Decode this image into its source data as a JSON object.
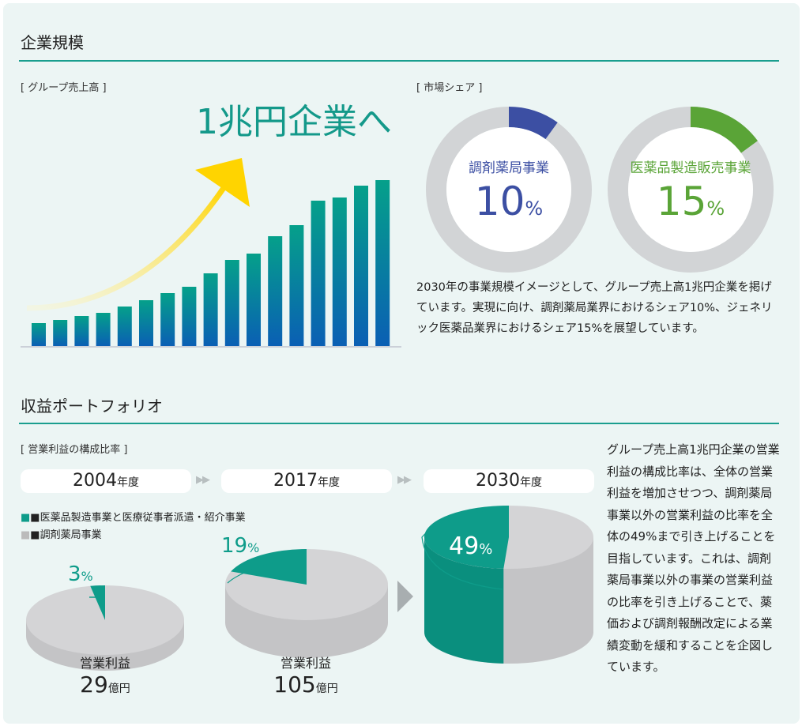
{
  "section1": {
    "title": "企業規模",
    "sales_label": "[ グループ売上高 ]",
    "headline": "1兆円企業へ",
    "share_label": "[ 市場シェア ]",
    "paragraph": "2030年の事業規模イメージとして、グループ売上高1兆円企業を掲げています。実現に向け、調剤薬局業界におけるシェア10%、ジェネリック医薬品業界におけるシェア15%を展望しています。"
  },
  "section2": {
    "title": "収益ポートフォリオ",
    "ratio_label": "[ 営業利益の構成比率 ]",
    "years": [
      {
        "year": "2004",
        "unit": "年度"
      },
      {
        "year": "2017",
        "unit": "年度"
      },
      {
        "year": "2030",
        "unit": "年度"
      }
    ],
    "legend": [
      "■医薬品製造事業と医療従事者派遣・紹介事業",
      "■調剤薬局事業"
    ],
    "profit_label": "営業利益",
    "profits": [
      {
        "value": "29",
        "unit": "億円"
      },
      {
        "value": "105",
        "unit": "億円"
      }
    ],
    "paragraph": "グループ売上高1兆円企業の営業利益の構成比率は、全体の営業利益を増加させつつ、調剤薬局事業以外の営業利益の比率を全体の49%まで引き上げることを目指しています。これは、調剤薬局事業以外の事業の営業利益の比率を引き上げることで、薬価および調剤報酬改定による業績変動を緩和することを企図しています。"
  },
  "chart_data": [
    {
      "type": "bar",
      "title": "",
      "values": [
        29,
        33,
        38,
        42,
        50,
        58,
        67,
        75,
        92,
        109,
        117,
        139,
        153,
        184,
        188,
        203,
        210
      ]
    },
    {
      "type": "pie",
      "name": "調剤薬局事業",
      "value": 10,
      "label": "10",
      "unit": "%",
      "color": "#3c4fa3"
    },
    {
      "type": "pie",
      "name": "医薬品製造販売事業",
      "value": 15,
      "label": "15",
      "unit": "%",
      "color": "#5aa437"
    },
    {
      "type": "pie",
      "series": [
        {
          "year": "2004",
          "value": 3,
          "label": "3",
          "unit": "%"
        },
        {
          "year": "2017",
          "value": 19,
          "label": "19",
          "unit": "%"
        },
        {
          "year": "2030",
          "value": 49,
          "label": "49",
          "unit": "%"
        }
      ],
      "colors": {
        "other": "#0e9c8a",
        "pharmacy": "#d4d4d6"
      }
    }
  ]
}
